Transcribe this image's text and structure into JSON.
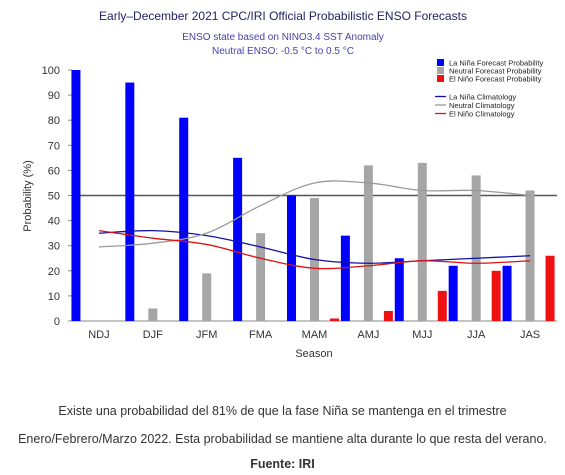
{
  "chart_data": {
    "type": "bar",
    "title": "Early–December 2021 CPC/IRI Official Probabilistic ENSO Forecasts",
    "subtitle": [
      "ENSO state based on NINO3.4 SST Anomaly",
      "Neutral ENSO: -0.5 °C to 0.5 °C"
    ],
    "xlabel": "Season",
    "ylabel": "Probability (%)",
    "ylim": [
      0,
      100
    ],
    "yticks": [
      0,
      10,
      20,
      30,
      40,
      50,
      60,
      70,
      80,
      90,
      100
    ],
    "reference_line": 50,
    "categories": [
      "NDJ",
      "DJF",
      "JFM",
      "FMA",
      "MAM",
      "AMJ",
      "MJJ",
      "JJA",
      "JAS"
    ],
    "series": [
      {
        "name": "La Niña Forecast Probability",
        "color": "#0000ff",
        "values": [
          100,
          95,
          81,
          65,
          50,
          34,
          25,
          22,
          22
        ]
      },
      {
        "name": "Neutral Forecast Probability",
        "color": "#a6a6a6",
        "values": [
          0,
          5,
          19,
          35,
          49,
          62,
          63,
          58,
          52
        ]
      },
      {
        "name": "El Niño Forecast Probability",
        "color": "#ee1111",
        "values": [
          0,
          0,
          0,
          0,
          1,
          4,
          12,
          20,
          26
        ]
      }
    ],
    "lines": [
      {
        "name": "La Niña Climatology",
        "color": "#1111aa",
        "values": [
          35,
          36,
          34,
          29.5,
          24.5,
          23,
          24,
          25,
          26
        ]
      },
      {
        "name": "Neutral Climatology",
        "color": "#999999",
        "values": [
          29.5,
          31,
          35,
          46,
          55,
          55,
          52,
          52,
          50
        ]
      },
      {
        "name": "El Niño Climatology",
        "color": "#dd1111",
        "values": [
          36,
          33,
          30.5,
          25,
          21,
          22,
          24,
          23,
          24
        ]
      }
    ],
    "legend_position": "top-right",
    "grid": false
  },
  "caption": {
    "line1": "Existe una probabilidad del 81% de que la fase Niña se mantenga en el trimestre",
    "line2": "Enero/Febrero/Marzo 2022. Esta probabilidad se mantiene alta durante lo que resta del verano.",
    "source": "Fuente: IRI"
  },
  "colors": {
    "title": "#222266",
    "subtitle": "#4444aa",
    "axis_text": "#333333"
  }
}
